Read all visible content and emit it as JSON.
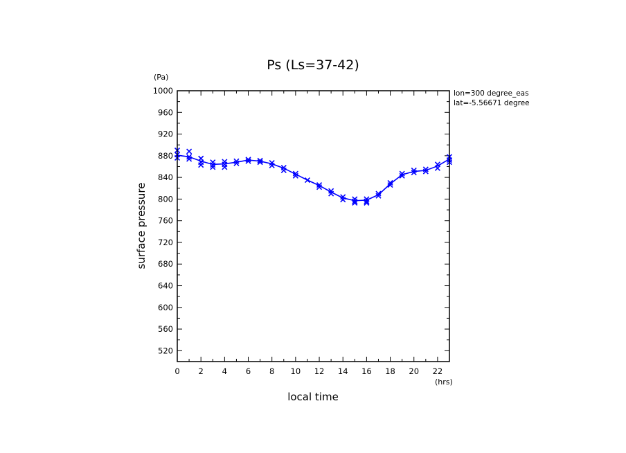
{
  "chart_data": {
    "type": "scatter",
    "title": "Ps (Ls=37-42)",
    "xlabel": "local time",
    "ylabel": "surface pressure",
    "xunit": "(hrs)",
    "yunit": "(Pa)",
    "xlim": [
      0,
      23
    ],
    "ylim": [
      500,
      1000
    ],
    "xticks": [
      "0",
      "2",
      "4",
      "6",
      "8",
      "10",
      "12",
      "14",
      "16",
      "18",
      "20",
      "22"
    ],
    "yticks": [
      "520",
      "560",
      "600",
      "640",
      "680",
      "720",
      "760",
      "800",
      "840",
      "880",
      "920",
      "960",
      "1000"
    ],
    "annotations": [
      "lon=300 degree_eas",
      "lat=-5.56671 degree"
    ],
    "color": "#0000ff",
    "line": {
      "x": [
        0,
        1,
        2,
        3,
        4,
        5,
        6,
        7,
        8,
        9,
        10,
        11,
        12,
        13,
        14,
        15,
        16,
        17,
        18,
        19,
        20,
        21,
        22,
        23
      ],
      "y": [
        881,
        878,
        870,
        864,
        865,
        868,
        872,
        870,
        865,
        857,
        846,
        835,
        825,
        813,
        802,
        797,
        798,
        808,
        828,
        845,
        851,
        853,
        861,
        874
      ]
    },
    "points": {
      "x": [
        0,
        0,
        0,
        1,
        1,
        1,
        2,
        2,
        2,
        3,
        3,
        3,
        4,
        4,
        4,
        5,
        5,
        6,
        6,
        7,
        7,
        8,
        8,
        9,
        9,
        10,
        10,
        11,
        12,
        12,
        13,
        13,
        14,
        14,
        15,
        15,
        15,
        16,
        16,
        16,
        17,
        17,
        18,
        18,
        19,
        19,
        20,
        20,
        21,
        21,
        22,
        22,
        23,
        23,
        23
      ],
      "y": [
        890,
        882,
        876,
        888,
        878,
        874,
        875,
        868,
        863,
        868,
        863,
        859,
        869,
        864,
        859,
        870,
        866,
        873,
        870,
        871,
        868,
        867,
        862,
        858,
        853,
        847,
        843,
        835,
        826,
        822,
        815,
        810,
        804,
        799,
        800,
        796,
        793,
        800,
        796,
        793,
        810,
        806,
        830,
        826,
        847,
        843,
        853,
        849,
        855,
        851,
        864,
        857,
        878,
        872,
        868
      ]
    }
  }
}
